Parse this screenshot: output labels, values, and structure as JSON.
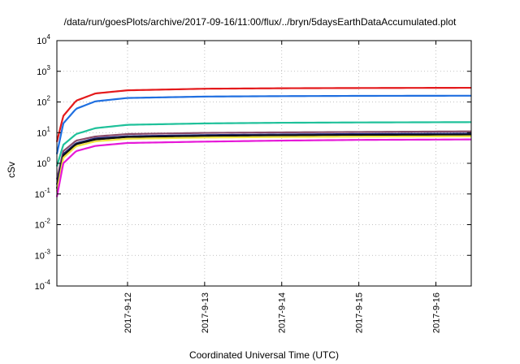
{
  "chart_data": {
    "type": "line",
    "title": "/data/run/goesPlots/archive/2017-09-16/11:00/flux/../bryn/5daysEarthDataAccumulated.plot",
    "xlabel": "Coordinated Universal Time (UTC)",
    "ylabel": "cSv",
    "y_scale": "log",
    "ylim": [
      0.0001,
      10000
    ],
    "xlim": [
      "2017-09-11 02:00",
      "2017-09-16 11:00"
    ],
    "x_ticks": [
      "2017-9-12",
      "2017-9-13",
      "2017-9-14",
      "2017-9-15",
      "2017-9-16"
    ],
    "y_ticks": [
      {
        "base": "10",
        "exp": "4"
      },
      {
        "base": "10",
        "exp": "3"
      },
      {
        "base": "10",
        "exp": "2"
      },
      {
        "base": "10",
        "exp": "1"
      },
      {
        "base": "10",
        "exp": "0"
      },
      {
        "base": "10",
        "exp": "-1"
      },
      {
        "base": "10",
        "exp": "-2"
      },
      {
        "base": "10",
        "exp": "-3"
      },
      {
        "base": "10",
        "exp": "-4"
      }
    ],
    "grid": true,
    "series": [
      {
        "color": "#e41a1c",
        "x": [
          "2017-09-11 02:00",
          "2017-09-11 04:00",
          "2017-09-11 08:00",
          "2017-09-11 14:00",
          "2017-09-12 00:00",
          "2017-09-13 00:00",
          "2017-09-14 00:00",
          "2017-09-15 00:00",
          "2017-09-16 11:00"
        ],
        "values": [
          5,
          35,
          110,
          190,
          240,
          270,
          280,
          285,
          290
        ]
      },
      {
        "color": "#1f6fe0",
        "x": [
          "2017-09-11 02:00",
          "2017-09-11 04:00",
          "2017-09-11 08:00",
          "2017-09-11 14:00",
          "2017-09-12 00:00",
          "2017-09-13 00:00",
          "2017-09-14 00:00",
          "2017-09-15 00:00",
          "2017-09-16 11:00"
        ],
        "values": [
          2,
          20,
          60,
          105,
          135,
          150,
          155,
          158,
          160
        ]
      },
      {
        "color": "#1fc19a",
        "x": [
          "2017-09-11 02:00",
          "2017-09-11 04:00",
          "2017-09-11 08:00",
          "2017-09-11 14:00",
          "2017-09-12 00:00",
          "2017-09-13 00:00",
          "2017-09-14 00:00",
          "2017-09-15 00:00",
          "2017-09-16 11:00"
        ],
        "values": [
          0.8,
          4,
          9,
          14,
          18,
          20,
          21,
          21.5,
          22
        ]
      },
      {
        "color": "#8a4a6a",
        "x": [
          "2017-09-11 02:00",
          "2017-09-11 04:00",
          "2017-09-11 08:00",
          "2017-09-11 14:00",
          "2017-09-12 00:00",
          "2017-09-13 00:00",
          "2017-09-14 00:00",
          "2017-09-15 00:00",
          "2017-09-16 11:00"
        ],
        "values": [
          0.3,
          2.5,
          5.5,
          7.5,
          9,
          9.8,
          10.2,
          10.5,
          11
        ]
      },
      {
        "color": "#1a237e",
        "x": [
          "2017-09-11 02:00",
          "2017-09-11 04:00",
          "2017-09-11 08:00",
          "2017-09-11 14:00",
          "2017-09-12 00:00",
          "2017-09-13 00:00",
          "2017-09-14 00:00",
          "2017-09-15 00:00",
          "2017-09-16 11:00"
        ],
        "values": [
          0.2,
          2,
          4.5,
          6.5,
          7.6,
          8.3,
          8.7,
          9,
          9.3
        ]
      },
      {
        "color": "#111111",
        "x": [
          "2017-09-11 02:00",
          "2017-09-11 04:00",
          "2017-09-11 08:00",
          "2017-09-11 14:00",
          "2017-09-12 00:00",
          "2017-09-13 00:00",
          "2017-09-14 00:00",
          "2017-09-15 00:00",
          "2017-09-16 11:00"
        ],
        "values": [
          0.15,
          1.8,
          4.2,
          6,
          7.2,
          7.8,
          8.2,
          8.4,
          8.6
        ]
      },
      {
        "color": "#f0e442",
        "x": [
          "2017-09-11 02:00",
          "2017-09-11 04:00",
          "2017-09-11 08:00",
          "2017-09-11 14:00",
          "2017-09-12 00:00",
          "2017-09-13 00:00",
          "2017-09-14 00:00",
          "2017-09-15 00:00",
          "2017-09-16 11:00"
        ],
        "values": [
          0.12,
          1.5,
          3.6,
          5.2,
          6.3,
          6.9,
          7.2,
          7.4,
          7.6
        ]
      },
      {
        "color": "#e619d8",
        "x": [
          "2017-09-11 02:00",
          "2017-09-11 04:00",
          "2017-09-11 08:00",
          "2017-09-11 14:00",
          "2017-09-12 00:00",
          "2017-09-13 00:00",
          "2017-09-14 00:00",
          "2017-09-15 00:00",
          "2017-09-16 11:00"
        ],
        "values": [
          0.08,
          1,
          2.5,
          3.7,
          4.6,
          5.1,
          5.5,
          5.8,
          6
        ]
      }
    ]
  }
}
